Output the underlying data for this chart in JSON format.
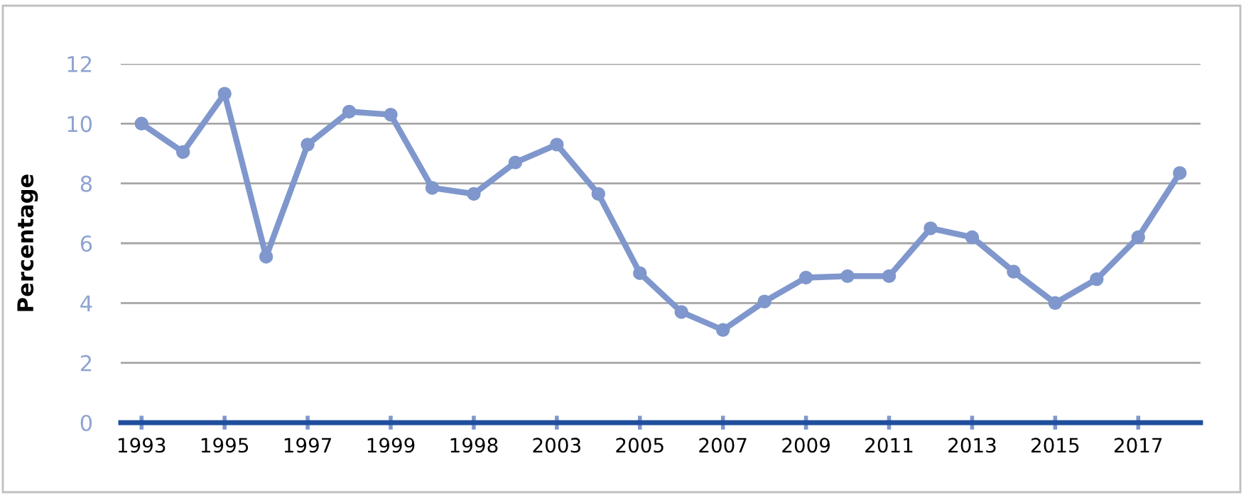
{
  "chart_data": {
    "type": "line",
    "ylabel": "Percentage",
    "categories": [
      "1993",
      null,
      "1995",
      null,
      "1997",
      null,
      "1999",
      null,
      "1998",
      null,
      "2003",
      null,
      "2005",
      null,
      "2007",
      null,
      "2009",
      null,
      "2011",
      null,
      "2013",
      null,
      "2015",
      null,
      "2017",
      null
    ],
    "series": [
      {
        "color": "#7f97cc",
        "values": [
          10.0,
          9.05,
          11.0,
          5.55,
          9.3,
          10.4,
          10.3,
          7.85,
          7.65,
          8.7,
          9.3,
          7.65,
          5.0,
          3.7,
          3.1,
          4.05,
          4.85,
          4.9,
          4.9,
          6.5,
          6.2,
          5.05,
          4.0,
          4.8,
          6.2,
          8.35
        ]
      }
    ],
    "ylim": [
      0,
      12
    ],
    "yticks": [
      0,
      2,
      4,
      6,
      8,
      10,
      12
    ],
    "grid": "y",
    "marker": "circle",
    "line_style": "solid"
  }
}
